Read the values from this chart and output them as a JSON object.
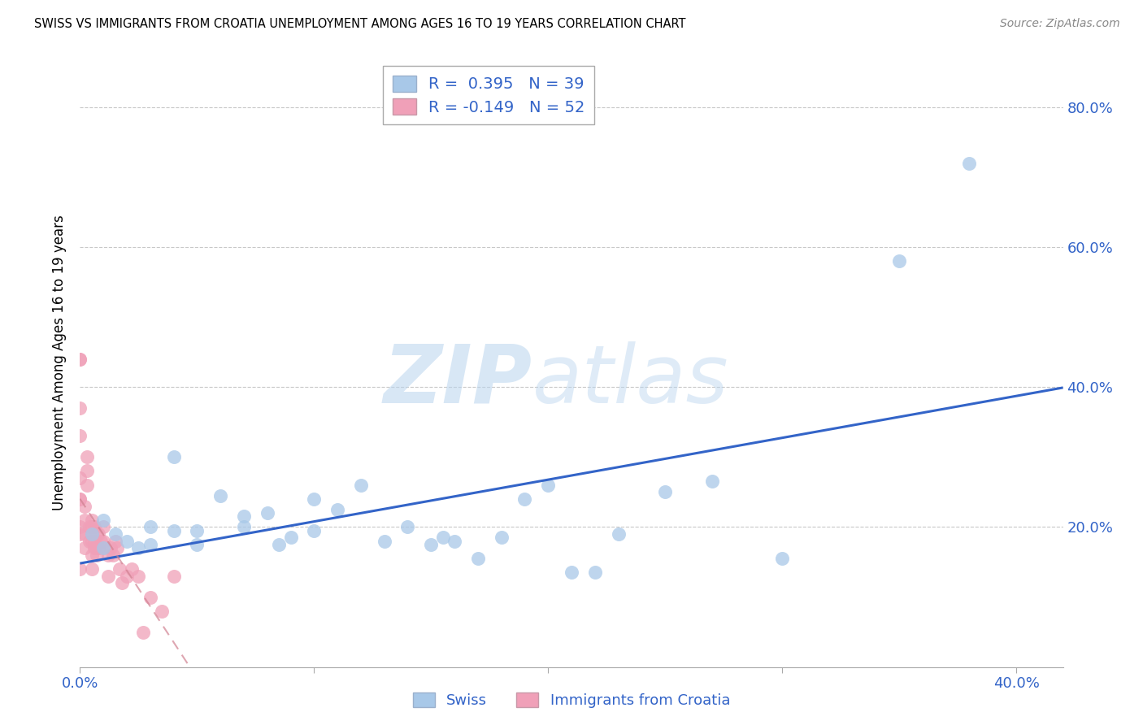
{
  "title": "SWISS VS IMMIGRANTS FROM CROATIA UNEMPLOYMENT AMONG AGES 16 TO 19 YEARS CORRELATION CHART",
  "source": "Source: ZipAtlas.com",
  "ylabel": "Unemployment Among Ages 16 to 19 years",
  "xlim": [
    0.0,
    0.42
  ],
  "ylim": [
    0.0,
    0.87
  ],
  "xticks": [
    0.0,
    0.4
  ],
  "yticks": [
    0.2,
    0.4,
    0.6,
    0.8
  ],
  "ytick_labels": [
    "20.0%",
    "40.0%",
    "60.0%",
    "80.0%"
  ],
  "xtick_labels": [
    "0.0%",
    "40.0%"
  ],
  "grid_color": "#c8c8c8",
  "swiss_color": "#a8c8e8",
  "croatia_color": "#f0a0b8",
  "swiss_line_color": "#3364c8",
  "croatia_line_color": "#d08090",
  "swiss_R": 0.395,
  "swiss_N": 39,
  "croatia_R": -0.149,
  "croatia_N": 52,
  "swiss_points_x": [
    0.005,
    0.01,
    0.01,
    0.015,
    0.02,
    0.025,
    0.03,
    0.03,
    0.04,
    0.04,
    0.05,
    0.05,
    0.06,
    0.07,
    0.07,
    0.08,
    0.085,
    0.09,
    0.1,
    0.1,
    0.11,
    0.12,
    0.13,
    0.14,
    0.15,
    0.155,
    0.16,
    0.17,
    0.18,
    0.19,
    0.2,
    0.21,
    0.22,
    0.23,
    0.25,
    0.27,
    0.3,
    0.35,
    0.38
  ],
  "swiss_points_y": [
    0.19,
    0.17,
    0.21,
    0.19,
    0.18,
    0.17,
    0.2,
    0.175,
    0.195,
    0.3,
    0.175,
    0.195,
    0.245,
    0.215,
    0.2,
    0.22,
    0.175,
    0.185,
    0.24,
    0.195,
    0.225,
    0.26,
    0.18,
    0.2,
    0.175,
    0.185,
    0.18,
    0.155,
    0.185,
    0.24,
    0.26,
    0.135,
    0.135,
    0.19,
    0.25,
    0.265,
    0.155,
    0.58,
    0.72
  ],
  "croatia_points_x": [
    0.0,
    0.0,
    0.0,
    0.0,
    0.0,
    0.0,
    0.0,
    0.0,
    0.0,
    0.0,
    0.002,
    0.002,
    0.002,
    0.002,
    0.003,
    0.003,
    0.003,
    0.004,
    0.004,
    0.005,
    0.005,
    0.005,
    0.005,
    0.005,
    0.005,
    0.006,
    0.006,
    0.006,
    0.007,
    0.007,
    0.007,
    0.008,
    0.008,
    0.009,
    0.01,
    0.01,
    0.01,
    0.012,
    0.012,
    0.013,
    0.014,
    0.015,
    0.016,
    0.017,
    0.018,
    0.02,
    0.022,
    0.025,
    0.027,
    0.03,
    0.035,
    0.04
  ],
  "croatia_points_y": [
    0.33,
    0.44,
    0.44,
    0.37,
    0.24,
    0.24,
    0.27,
    0.2,
    0.19,
    0.14,
    0.17,
    0.19,
    0.21,
    0.23,
    0.26,
    0.28,
    0.3,
    0.18,
    0.2,
    0.14,
    0.16,
    0.18,
    0.19,
    0.2,
    0.21,
    0.17,
    0.18,
    0.2,
    0.16,
    0.17,
    0.19,
    0.17,
    0.19,
    0.18,
    0.17,
    0.18,
    0.2,
    0.13,
    0.16,
    0.17,
    0.16,
    0.18,
    0.17,
    0.14,
    0.12,
    0.13,
    0.14,
    0.13,
    0.05,
    0.1,
    0.08,
    0.13
  ]
}
